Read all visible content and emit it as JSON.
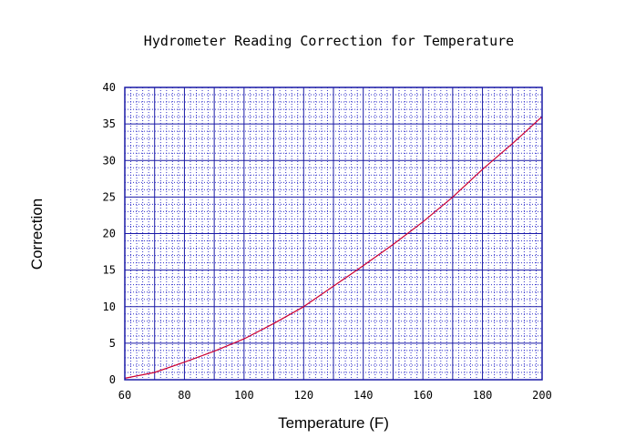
{
  "chart_data": {
    "type": "line",
    "title": "Hydrometer Reading Correction for Temperature",
    "xlabel": "Temperature (F)",
    "ylabel": "Correction",
    "xlim": [
      60,
      200
    ],
    "ylim": [
      0,
      40
    ],
    "x_ticks": [
      "60",
      "80",
      "100",
      "120",
      "140",
      "160",
      "180",
      "200"
    ],
    "y_ticks": [
      "0",
      "5",
      "10",
      "15",
      "20",
      "25",
      "30",
      "35",
      "40"
    ],
    "grid": true,
    "colors": {
      "major_grid": "#1a1aa6",
      "minor_grid": "#3333cc",
      "line": "#cc0033",
      "frame": "#1a1aa6"
    },
    "series": [
      {
        "x": [
          60,
          70,
          80,
          90,
          100,
          110,
          120,
          130,
          140,
          150,
          160,
          170,
          180,
          190,
          200
        ],
        "y": [
          0.2,
          1.0,
          2.4,
          3.9,
          5.6,
          7.7,
          10.0,
          12.8,
          15.6,
          18.5,
          21.6,
          25.0,
          28.8,
          32.3,
          36.0
        ]
      }
    ]
  }
}
